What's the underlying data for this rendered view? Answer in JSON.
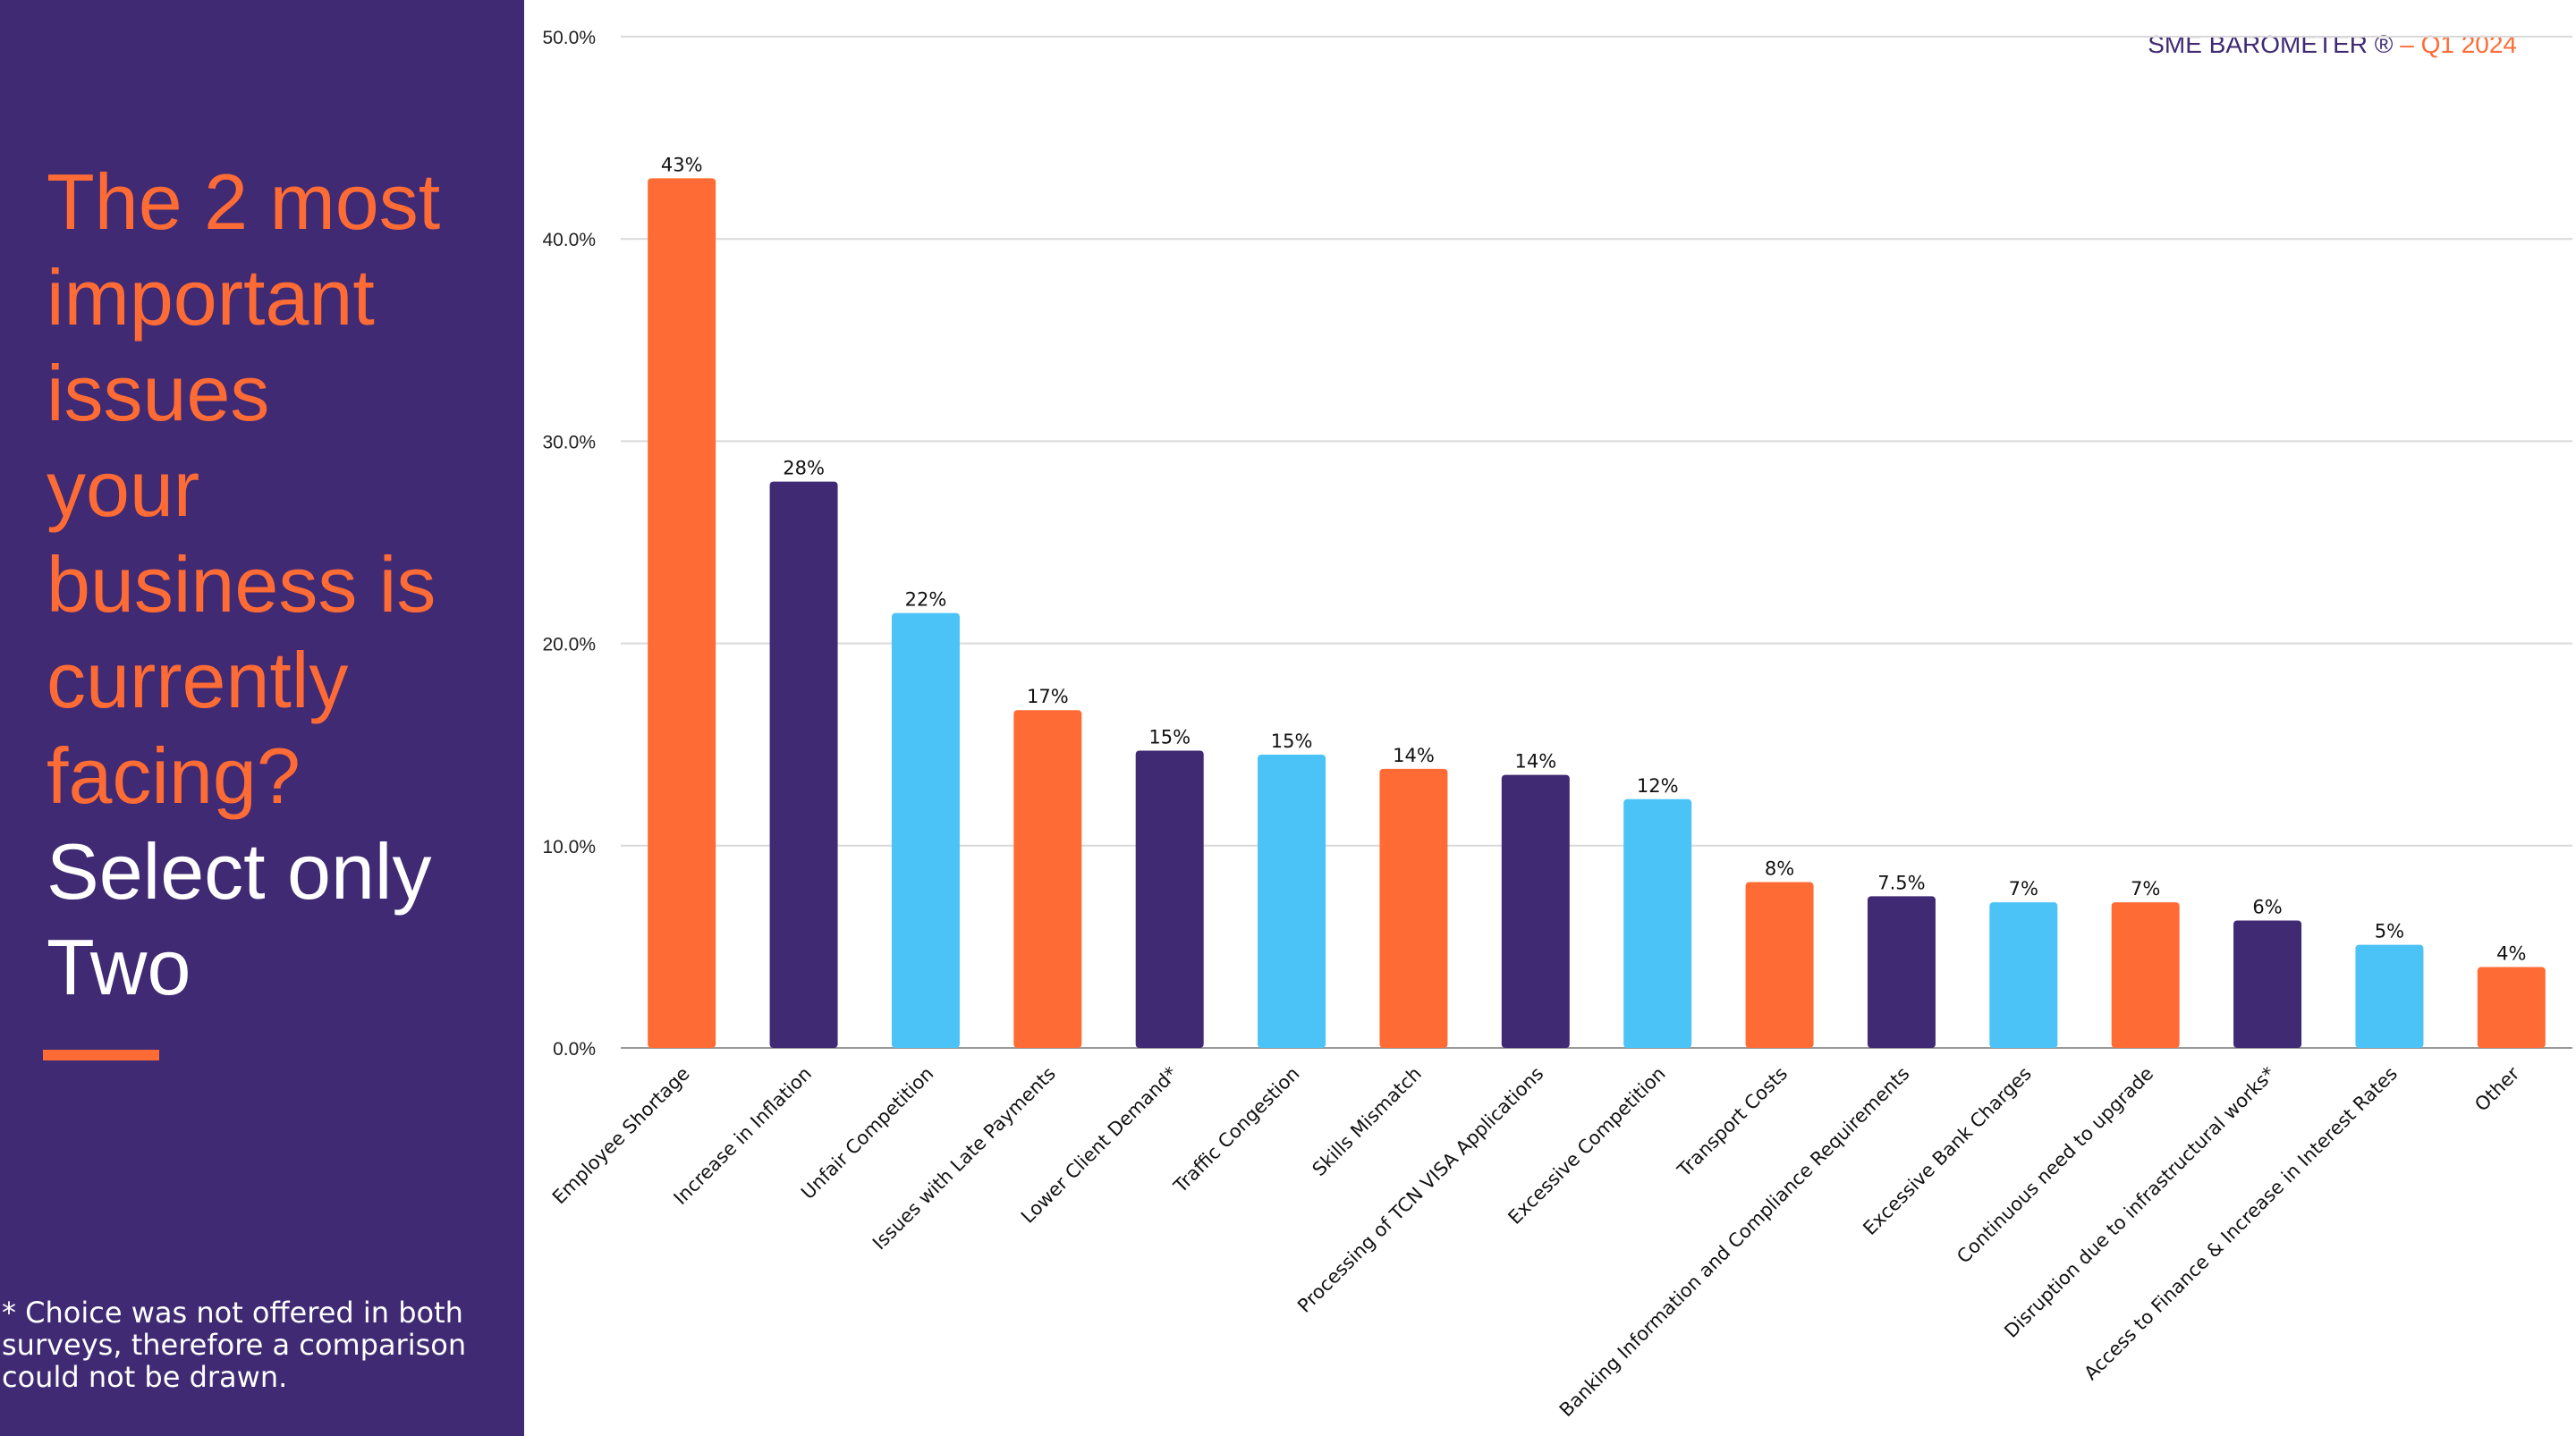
{
  "sidebar": {
    "question_lines": [
      "The 2 most",
      "important",
      "issues",
      "your",
      "business is",
      "currently",
      "facing?"
    ],
    "instruction_lines": [
      "Select only",
      "Two"
    ],
    "footnote": " * Choice was not offered in both surveys, therefore a comparison could not be drawn."
  },
  "brand": {
    "name": "SME BAROMETER ®",
    "separator": " – ",
    "period": "Q1 2024"
  },
  "colors": {
    "orange": "#ff6b35",
    "purple": "#3f2a73",
    "blue": "#4bc3f7",
    "grid": "#d9d9d9",
    "axis": "#999999"
  },
  "chart_data": {
    "type": "bar",
    "title": "",
    "xlabel": "",
    "ylabel": "",
    "ylim": [
      0,
      50
    ],
    "yticks": [
      0,
      10,
      20,
      30,
      40,
      50
    ],
    "ytick_labels": [
      "0.0%",
      "10.0%",
      "20.0%",
      "30.0%",
      "40.0%",
      "50.0%"
    ],
    "grid": true,
    "categories": [
      "Employee Shortage",
      "Increase in Inflation",
      "Unfair Competition",
      "Issues with Late Payments",
      "Lower Client Demand*",
      "Traffic Congestion",
      "Skills Mismatch",
      "Processing of TCN VISA Applications",
      "Excessive Competition",
      "Transport Costs",
      "Banking Information and Compliance Requirements",
      "Excessive Bank Charges",
      "Continuous need to upgrade",
      "Disruption due to infrastructural works*",
      "Access to Finance & Increase in Interest Rates",
      "Other"
    ],
    "values": [
      43,
      28,
      21.5,
      16.7,
      14.7,
      14.5,
      13.8,
      13.5,
      12.3,
      8.2,
      7.5,
      7.2,
      7.2,
      6.3,
      5.1,
      4
    ],
    "data_labels": [
      "43%",
      "28%",
      "22%",
      "17%",
      "15%",
      "15%",
      "14%",
      "14%",
      "12%",
      "8%",
      "7.5%",
      "7%",
      "7%",
      "6%",
      "5%",
      "4%"
    ],
    "bar_colors": [
      "#ff6b35",
      "#3f2a73",
      "#4bc3f7",
      "#ff6b35",
      "#3f2a73",
      "#4bc3f7",
      "#ff6b35",
      "#3f2a73",
      "#4bc3f7",
      "#ff6b35",
      "#3f2a73",
      "#4bc3f7",
      "#ff6b35",
      "#3f2a73",
      "#4bc3f7",
      "#ff6b35"
    ]
  }
}
